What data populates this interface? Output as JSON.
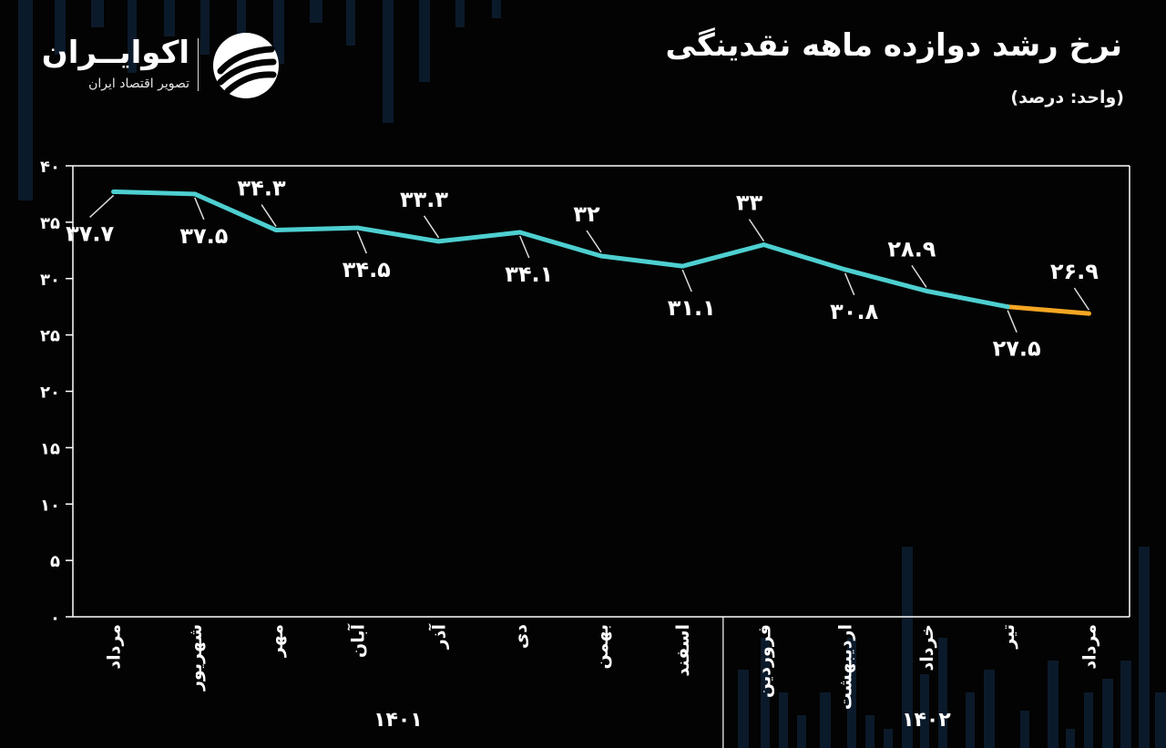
{
  "header": {
    "title": "نرخ رشد دوازده ماهه نقدینگی",
    "unit": "(واحد: درصد)"
  },
  "brand": {
    "name": "اکوایــران",
    "tagline": "تصویر اقتصاد ایران"
  },
  "colors": {
    "background": "#030303",
    "line": "#4ecfd0",
    "highlight": "#f5a623",
    "text": "#ffffff",
    "axis": "#ffffff"
  },
  "chart_data": {
    "type": "line",
    "categories": [
      "مرداد",
      "شهریور",
      "مهر",
      "آبان",
      "آذر",
      "دی",
      "بهمن",
      "اسفند",
      "فروردین",
      "اردیبهشت",
      "خرداد",
      "تیر",
      "مرداد"
    ],
    "values": [
      37.7,
      37.5,
      34.3,
      34.5,
      33.3,
      34.1,
      32,
      31.1,
      33,
      30.8,
      28.9,
      27.5,
      26.9
    ],
    "data_labels": [
      "۳۷.۷",
      "۳۷.۵",
      "۳۴.۳",
      "۳۴.۵",
      "۳۳.۳",
      "۳۴.۱",
      "۳۲",
      "۳۱.۱",
      "۳۳",
      "۳۰.۸",
      "۲۸.۹",
      "۲۷.۵",
      "۲۶.۹"
    ],
    "label_position": [
      "below",
      "below",
      "above",
      "below",
      "above",
      "below",
      "above",
      "below",
      "above",
      "below",
      "above",
      "below",
      "above"
    ],
    "year_groups": [
      {
        "label": "۱۴۰۱",
        "start": 0,
        "end": 7
      },
      {
        "label": "۱۴۰۲",
        "start": 8,
        "end": 12
      }
    ],
    "highlight_segment": [
      11,
      12
    ],
    "ylim": [
      0,
      40
    ],
    "yticks": [
      "۰",
      "۵",
      "۱۰",
      "۱۵",
      "۲۰",
      "۲۵",
      "۳۰",
      "۳۵",
      "۴۰"
    ],
    "ytick_values": [
      0,
      5,
      10,
      15,
      20,
      25,
      30,
      35,
      40
    ],
    "grid": false,
    "legend": "none"
  }
}
